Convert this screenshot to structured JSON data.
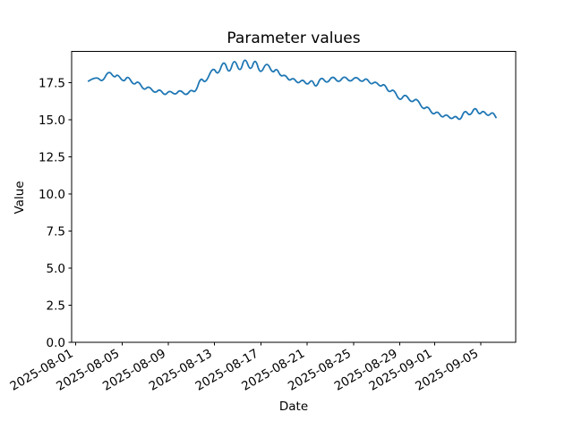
{
  "chart_data": {
    "type": "line",
    "title": "Parameter values",
    "xlabel": "Date",
    "ylabel": "Value",
    "legend": false,
    "grid": false,
    "background_color": "#ffffff",
    "spine_color": "#000000",
    "line_color": "#1f77b4",
    "x_unit": "days since 2025-08-01",
    "xlim": [
      -0.35,
      38.0
    ],
    "ylim": [
      0,
      19.6
    ],
    "yticks": [
      {
        "value": 0.0,
        "label": "0.0"
      },
      {
        "value": 2.5,
        "label": "2.5"
      },
      {
        "value": 5.0,
        "label": "5.0"
      },
      {
        "value": 7.5,
        "label": "7.5"
      },
      {
        "value": 10.0,
        "label": "10.0"
      },
      {
        "value": 12.5,
        "label": "12.5"
      },
      {
        "value": 15.0,
        "label": "15.0"
      },
      {
        "value": 17.5,
        "label": "17.5"
      }
    ],
    "xticks": [
      {
        "day": 0,
        "label": "2025-08-01"
      },
      {
        "day": 4,
        "label": "2025-08-05"
      },
      {
        "day": 8,
        "label": "2025-08-09"
      },
      {
        "day": 12,
        "label": "2025-08-13"
      },
      {
        "day": 16,
        "label": "2025-08-17"
      },
      {
        "day": 20,
        "label": "2025-08-21"
      },
      {
        "day": 24,
        "label": "2025-08-25"
      },
      {
        "day": 28,
        "label": "2025-08-29"
      },
      {
        "day": 31,
        "label": "2025-09-01"
      },
      {
        "day": 35,
        "label": "2025-09-05"
      }
    ],
    "xtick_rotation_deg": 30,
    "series": [
      {
        "name": "parameter-values",
        "color": "#1f77b4",
        "points": [
          [
            1.1,
            17.6
          ],
          [
            1.8,
            17.95
          ],
          [
            2.3,
            17.5
          ],
          [
            2.85,
            18.35
          ],
          [
            3.35,
            17.8
          ],
          [
            3.6,
            18.1
          ],
          [
            4.15,
            17.5
          ],
          [
            4.5,
            18.0
          ],
          [
            5.0,
            17.3
          ],
          [
            5.4,
            17.65
          ],
          [
            5.9,
            16.95
          ],
          [
            6.3,
            17.3
          ],
          [
            6.85,
            16.75
          ],
          [
            7.25,
            17.1
          ],
          [
            7.7,
            16.6
          ],
          [
            8.1,
            17.0
          ],
          [
            8.6,
            16.65
          ],
          [
            9.0,
            17.05
          ],
          [
            9.55,
            16.6
          ],
          [
            9.95,
            17.05
          ],
          [
            10.35,
            16.8
          ],
          [
            10.8,
            17.9
          ],
          [
            11.2,
            17.4
          ],
          [
            11.85,
            18.6
          ],
          [
            12.3,
            17.95
          ],
          [
            12.8,
            19.1
          ],
          [
            13.25,
            18.0
          ],
          [
            13.7,
            19.2
          ],
          [
            14.2,
            18.1
          ],
          [
            14.6,
            19.3
          ],
          [
            15.1,
            18.2
          ],
          [
            15.5,
            19.2
          ],
          [
            15.95,
            18.0
          ],
          [
            16.5,
            18.95
          ],
          [
            17.0,
            18.1
          ],
          [
            17.35,
            18.5
          ],
          [
            17.7,
            17.9
          ],
          [
            18.1,
            18.05
          ],
          [
            18.45,
            17.6
          ],
          [
            18.8,
            17.85
          ],
          [
            19.2,
            17.4
          ],
          [
            19.6,
            17.75
          ],
          [
            20.0,
            17.3
          ],
          [
            20.4,
            17.75
          ],
          [
            20.75,
            17.1
          ],
          [
            21.2,
            17.95
          ],
          [
            21.7,
            17.4
          ],
          [
            22.2,
            18.0
          ],
          [
            22.7,
            17.45
          ],
          [
            23.2,
            18.0
          ],
          [
            23.7,
            17.5
          ],
          [
            24.2,
            17.95
          ],
          [
            24.7,
            17.5
          ],
          [
            25.1,
            17.85
          ],
          [
            25.5,
            17.35
          ],
          [
            25.9,
            17.6
          ],
          [
            26.3,
            17.2
          ],
          [
            26.65,
            17.45
          ],
          [
            27.05,
            16.8
          ],
          [
            27.45,
            17.1
          ],
          [
            28.0,
            16.2
          ],
          [
            28.45,
            16.8
          ],
          [
            29.0,
            16.1
          ],
          [
            29.45,
            16.5
          ],
          [
            30.0,
            15.65
          ],
          [
            30.4,
            15.95
          ],
          [
            30.85,
            15.3
          ],
          [
            31.25,
            15.6
          ],
          [
            31.65,
            15.1
          ],
          [
            32.0,
            15.4
          ],
          [
            32.45,
            15.0
          ],
          [
            32.8,
            15.3
          ],
          [
            33.2,
            14.9
          ],
          [
            33.6,
            15.7
          ],
          [
            34.05,
            15.2
          ],
          [
            34.5,
            15.9
          ],
          [
            34.85,
            15.3
          ],
          [
            35.2,
            15.65
          ],
          [
            35.6,
            15.2
          ],
          [
            36.0,
            15.55
          ],
          [
            36.3,
            15.15
          ]
        ]
      }
    ]
  }
}
